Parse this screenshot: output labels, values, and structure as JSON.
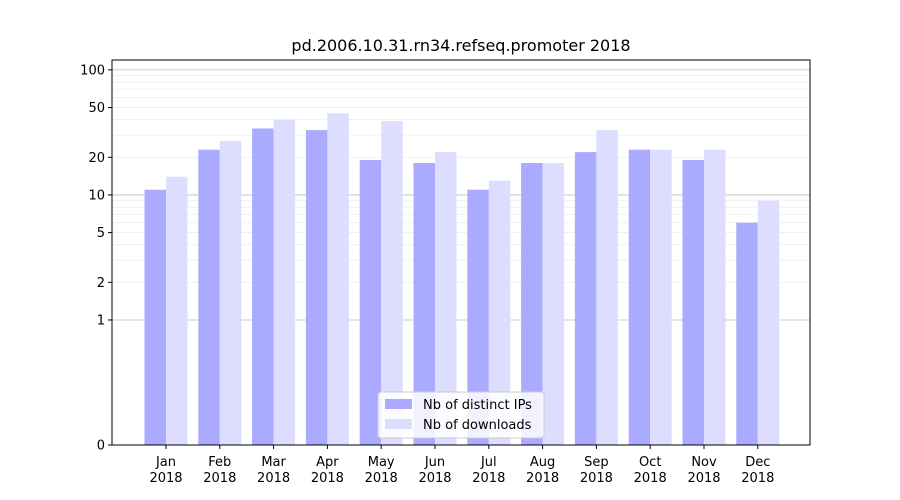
{
  "chart_data": {
    "type": "bar",
    "title": "pd.2006.10.31.rn34.refseq.promoter 2018",
    "xlabel": "",
    "ylabel": "",
    "yscale": "symlog",
    "ylim": [
      0,
      120
    ],
    "yticks": [
      0,
      1,
      2,
      5,
      10,
      20,
      50,
      100
    ],
    "grid": true,
    "legend_position": "lower-center",
    "categories": [
      {
        "month": "Jan",
        "year": "2018"
      },
      {
        "month": "Feb",
        "year": "2018"
      },
      {
        "month": "Mar",
        "year": "2018"
      },
      {
        "month": "Apr",
        "year": "2018"
      },
      {
        "month": "May",
        "year": "2018"
      },
      {
        "month": "Jun",
        "year": "2018"
      },
      {
        "month": "Jul",
        "year": "2018"
      },
      {
        "month": "Aug",
        "year": "2018"
      },
      {
        "month": "Sep",
        "year": "2018"
      },
      {
        "month": "Oct",
        "year": "2018"
      },
      {
        "month": "Nov",
        "year": "2018"
      },
      {
        "month": "Dec",
        "year": "2018"
      }
    ],
    "series": [
      {
        "name": "Nb of distinct IPs",
        "color": "#aaaaff",
        "values": [
          11,
          23,
          34,
          33,
          19,
          18,
          11,
          18,
          22,
          23,
          19,
          6
        ]
      },
      {
        "name": "Nb of downloads",
        "color": "#ddddff",
        "values": [
          14,
          27,
          40,
          45,
          39,
          22,
          13,
          18,
          33,
          23,
          23,
          9
        ]
      }
    ]
  }
}
